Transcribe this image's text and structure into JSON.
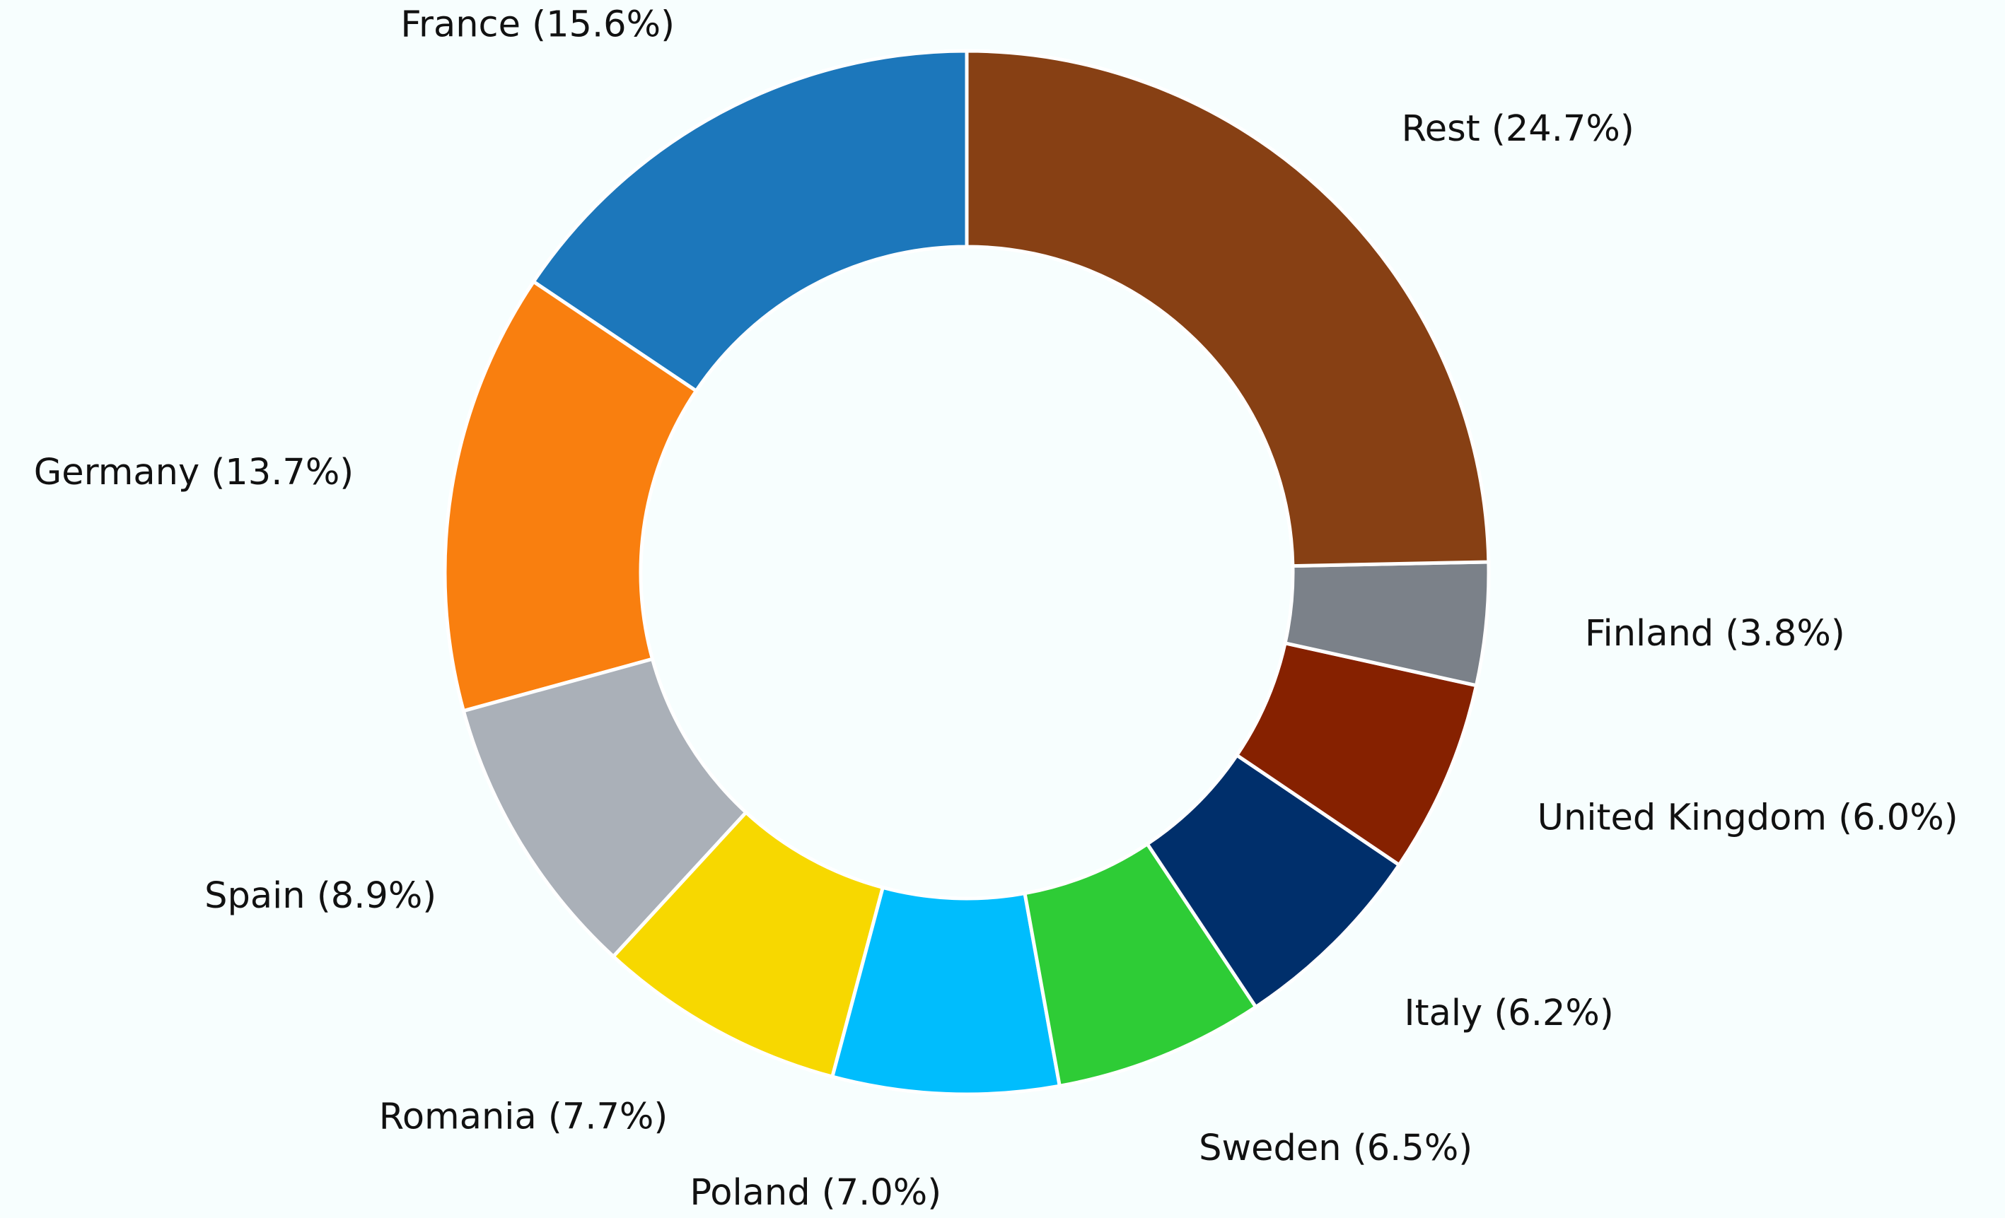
{
  "chart_data": {
    "type": "pie",
    "subtype": "donut",
    "title": "",
    "start_angle_deg": 90,
    "direction": "counterclockwise",
    "slices": [
      {
        "label": "France (15.6%)",
        "name": "France",
        "value": 15.6,
        "color": "#1c77bb"
      },
      {
        "label": "Germany (13.7%)",
        "name": "Germany",
        "value": 13.7,
        "color": "#f97f0f"
      },
      {
        "label": "Spain (8.9%)",
        "name": "Spain",
        "value": 8.9,
        "color": "#aab0b8"
      },
      {
        "label": "Romania (7.7%)",
        "name": "Romania",
        "value": 7.7,
        "color": "#f7d800"
      },
      {
        "label": "Poland (7.0%)",
        "name": "Poland",
        "value": 7.0,
        "color": "#00bdfd"
      },
      {
        "label": "Sweden (6.5%)",
        "name": "Sweden",
        "value": 6.5,
        "color": "#2ecc36"
      },
      {
        "label": "Italy (6.2%)",
        "name": "Italy",
        "value": 6.2,
        "color": "#002f6b"
      },
      {
        "label": "United Kingdom (6.0%)",
        "name": "United Kingdom",
        "value": 6.0,
        "color": "#862100"
      },
      {
        "label": "Finland (3.8%)",
        "name": "Finland",
        "value": 3.8,
        "color": "#7b8189"
      },
      {
        "label": "Rest (24.7%)",
        "name": "Rest",
        "value": 24.7,
        "color": "#874014"
      }
    ]
  }
}
